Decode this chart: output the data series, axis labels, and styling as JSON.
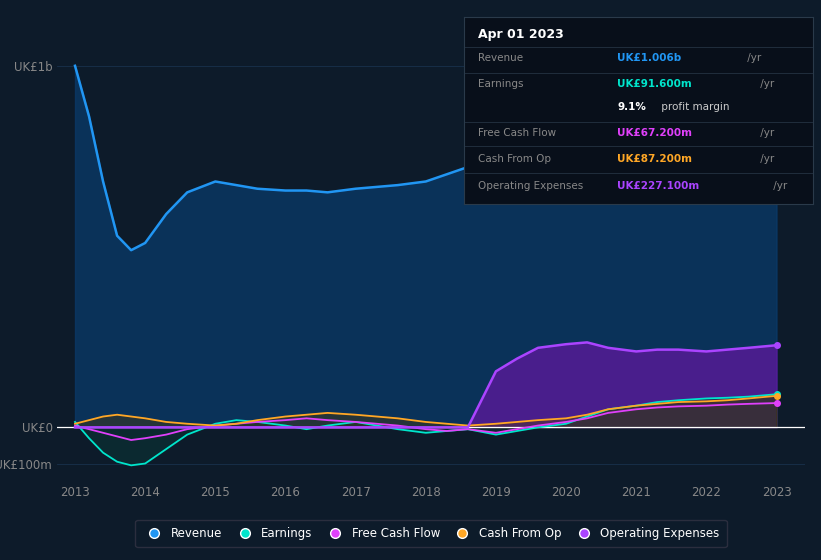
{
  "bg_color": "#0d1b2a",
  "plot_bg_color": "#0d1b2a",
  "grid_color": "#1e3a5a",
  "title_date": "Apr 01 2023",
  "tooltip_rows": [
    {
      "label": "Revenue",
      "value": "UK£1.006b",
      "suffix": " /yr",
      "color": "#2196f3",
      "bold_label": false
    },
    {
      "label": "Earnings",
      "value": "UK£91.600m",
      "suffix": " /yr",
      "color": "#00e5cc",
      "bold_label": false
    },
    {
      "label": "",
      "value": "9.1%",
      "suffix": " profit margin",
      "color": "#ffffff",
      "bold_label": true
    },
    {
      "label": "Free Cash Flow",
      "value": "UK£67.200m",
      "suffix": " /yr",
      "color": "#e040fb",
      "bold_label": false
    },
    {
      "label": "Cash From Op",
      "value": "UK£87.200m",
      "suffix": " /yr",
      "color": "#ffa726",
      "bold_label": false
    },
    {
      "label": "Operating Expenses",
      "value": "UK£227.100m",
      "suffix": " /yr",
      "color": "#aa44ff",
      "bold_label": false
    }
  ],
  "years": [
    2013.0,
    2013.2,
    2013.4,
    2013.6,
    2013.8,
    2014.0,
    2014.3,
    2014.6,
    2015.0,
    2015.3,
    2015.6,
    2016.0,
    2016.3,
    2016.6,
    2017.0,
    2017.3,
    2017.6,
    2018.0,
    2018.3,
    2018.6,
    2019.0,
    2019.3,
    2019.6,
    2020.0,
    2020.3,
    2020.6,
    2021.0,
    2021.3,
    2021.6,
    2022.0,
    2022.3,
    2022.6,
    2023.0
  ],
  "revenue": [
    1000,
    860,
    680,
    530,
    490,
    510,
    590,
    650,
    680,
    670,
    660,
    655,
    655,
    650,
    660,
    665,
    670,
    680,
    700,
    720,
    740,
    760,
    780,
    800,
    840,
    870,
    900,
    920,
    910,
    870,
    880,
    930,
    1006
  ],
  "earnings": [
    15,
    -30,
    -70,
    -95,
    -105,
    -100,
    -60,
    -20,
    10,
    20,
    15,
    5,
    -5,
    5,
    15,
    5,
    -5,
    -15,
    -10,
    -5,
    -20,
    -10,
    0,
    10,
    30,
    50,
    60,
    70,
    75,
    80,
    82,
    85,
    91.6
  ],
  "free_cash_flow": [
    5,
    -5,
    -15,
    -25,
    -35,
    -30,
    -20,
    -5,
    5,
    10,
    15,
    20,
    25,
    20,
    15,
    10,
    5,
    -5,
    -10,
    -5,
    -15,
    -5,
    5,
    15,
    25,
    40,
    50,
    55,
    58,
    60,
    63,
    65,
    67.2
  ],
  "cash_from_op": [
    10,
    20,
    30,
    35,
    30,
    25,
    15,
    10,
    5,
    10,
    20,
    30,
    35,
    40,
    35,
    30,
    25,
    15,
    10,
    5,
    10,
    15,
    20,
    25,
    35,
    50,
    60,
    65,
    70,
    72,
    75,
    80,
    87.2
  ],
  "operating_expenses": [
    0,
    0,
    0,
    0,
    0,
    0,
    0,
    0,
    0,
    0,
    0,
    0,
    0,
    0,
    0,
    0,
    0,
    0,
    0,
    0,
    155,
    190,
    220,
    230,
    235,
    220,
    210,
    215,
    215,
    210,
    215,
    220,
    227.1
  ],
  "revenue_color": "#2196f3",
  "earnings_color": "#00e5cc",
  "fcf_color": "#e040fb",
  "cashop_color": "#ffa726",
  "opex_color": "#aa44ff",
  "revenue_fill": "#0a3a6a",
  "opex_fill": "#5a1a9a",
  "earnings_fill": "#0a3535",
  "cashop_fill": "#5a3800",
  "ytick_labels": [
    "UK£1b",
    "UK£0",
    "-UK£100m"
  ],
  "ytick_vals": [
    1000,
    0,
    -100
  ],
  "xtick_labels": [
    "2013",
    "2014",
    "2015",
    "2016",
    "2017",
    "2018",
    "2019",
    "2020",
    "2021",
    "2022",
    "2023"
  ],
  "xtick_vals": [
    2013,
    2014,
    2015,
    2016,
    2017,
    2018,
    2019,
    2020,
    2021,
    2022,
    2023
  ],
  "ylim": [
    -150,
    1120
  ],
  "xlim": [
    2012.75,
    2023.4
  ],
  "legend_labels": [
    "Revenue",
    "Earnings",
    "Free Cash Flow",
    "Cash From Op",
    "Operating Expenses"
  ],
  "legend_colors": [
    "#2196f3",
    "#00e5cc",
    "#e040fb",
    "#ffa726",
    "#aa44ff"
  ]
}
